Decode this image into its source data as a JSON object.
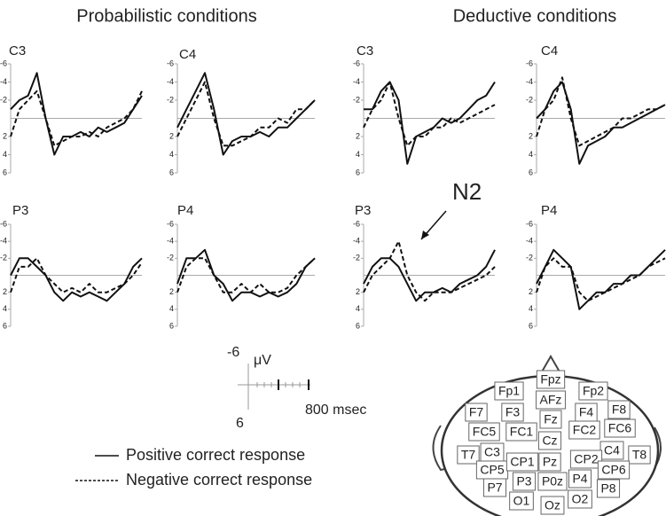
{
  "section_titles": [
    "Probabilistic conditions",
    "Deductive conditions"
  ],
  "annotation": "N2",
  "legend": [
    {
      "name": "Positive correct response",
      "line_style": "solid"
    },
    {
      "name": "Negative correct response",
      "line_style": "dashed"
    }
  ],
  "scale_bar": {
    "top_label": "-6",
    "unit": "μV",
    "bottom_label": "6",
    "time_label": "800 msec"
  },
  "electrodes": [
    "Fpz",
    "Fp1",
    "Fp2",
    "AFz",
    "F7",
    "F3",
    "Fz",
    "F4",
    "F8",
    "FC5",
    "FC1",
    "FC2",
    "FC6",
    "Cz",
    "T7",
    "C3",
    "C4",
    "T8",
    "CP5",
    "CP1",
    "Pz",
    "CP2",
    "CP6",
    "P7",
    "P3",
    "P0z",
    "P4",
    "P8",
    "O1",
    "Oz",
    "O2"
  ],
  "chart_data": [
    {
      "type": "line",
      "title": "C3",
      "x": [
        -100,
        0,
        100,
        200,
        300,
        400,
        500,
        600,
        700,
        800,
        900,
        1000,
        1100,
        1200,
        1300,
        1400
      ],
      "xlim": [
        -100,
        1400
      ],
      "ylim": [
        6,
        -6
      ],
      "yticks": [
        -6,
        -4,
        -2,
        2,
        4,
        6
      ],
      "series": [
        {
          "line_style": "solid",
          "color": "#111",
          "values": [
            -1,
            -2,
            -2.5,
            -5,
            0,
            4,
            2,
            2,
            1.5,
            2,
            1,
            1.5,
            1,
            0.5,
            -1,
            -2.5
          ]
        },
        {
          "line_style": "dashed",
          "color": "#111",
          "values": [
            2,
            -1,
            -2,
            -3,
            0,
            3,
            2.5,
            2,
            2,
            1.5,
            2,
            1,
            0.5,
            0,
            -1,
            -3
          ]
        }
      ]
    },
    {
      "type": "line",
      "title": "C4",
      "x": [
        -100,
        0,
        100,
        200,
        300,
        400,
        500,
        600,
        700,
        800,
        900,
        1000,
        1100,
        1200,
        1300,
        1400
      ],
      "xlim": [
        -100,
        1400
      ],
      "ylim": [
        6,
        -6
      ],
      "yticks": [
        -6,
        -4,
        -2,
        2,
        4,
        6
      ],
      "series": [
        {
          "line_style": "solid",
          "color": "#111",
          "values": [
            1,
            -1,
            -3,
            -5,
            -1,
            4,
            2.5,
            2,
            2,
            1.5,
            2,
            1,
            1,
            0,
            -1,
            -2
          ]
        },
        {
          "line_style": "dashed",
          "color": "#111",
          "values": [
            2,
            0,
            -2,
            -4,
            0,
            3,
            3,
            2.5,
            2,
            1,
            1,
            0,
            0.5,
            -1,
            -1,
            -2
          ]
        }
      ]
    },
    {
      "type": "line",
      "title": "C3",
      "x": [
        -100,
        0,
        100,
        200,
        300,
        400,
        500,
        600,
        700,
        800,
        900,
        1000,
        1100,
        1200,
        1300,
        1400
      ],
      "xlim": [
        -100,
        1400
      ],
      "ylim": [
        6,
        -6
      ],
      "yticks": [
        -6,
        -4,
        -2,
        2,
        4,
        6
      ],
      "series": [
        {
          "line_style": "solid",
          "color": "#111",
          "values": [
            -1,
            -1,
            -3,
            -4,
            -2,
            5,
            2,
            1.5,
            1,
            0,
            0.5,
            0,
            -1,
            -2,
            -2.5,
            -4
          ]
        },
        {
          "line_style": "dashed",
          "color": "#111",
          "values": [
            1,
            -1,
            -2,
            -4,
            0,
            3,
            2,
            2,
            1,
            1,
            0,
            0.5,
            0,
            -0.5,
            -1,
            -1.5
          ]
        }
      ]
    },
    {
      "type": "line",
      "title": "C4",
      "x": [
        -100,
        0,
        100,
        200,
        300,
        400,
        500,
        600,
        700,
        800,
        900,
        1000,
        1100,
        1200,
        1300,
        1400
      ],
      "xlim": [
        -100,
        1400
      ],
      "ylim": [
        6,
        -6
      ],
      "yticks": [
        -6,
        -4,
        -2,
        2,
        4,
        6
      ],
      "series": [
        {
          "line_style": "solid",
          "color": "#111",
          "values": [
            0,
            -1,
            -3,
            -4,
            -1,
            5,
            3,
            2.5,
            2,
            1,
            1,
            0.5,
            0,
            -0.5,
            -1,
            -1.5
          ]
        },
        {
          "line_style": "dashed",
          "color": "#111",
          "values": [
            2,
            -1,
            -2,
            -4.5,
            0,
            3,
            2.5,
            2,
            1.5,
            1,
            0,
            0,
            -0.5,
            -1,
            -1,
            -1.5
          ]
        }
      ]
    },
    {
      "type": "line",
      "title": "P3",
      "x": [
        -100,
        0,
        100,
        200,
        300,
        400,
        500,
        600,
        700,
        800,
        900,
        1000,
        1100,
        1200,
        1300,
        1400
      ],
      "xlim": [
        -100,
        1400
      ],
      "ylim": [
        6,
        -6
      ],
      "yticks": [
        -6,
        -4,
        -2,
        2,
        4,
        6
      ],
      "series": [
        {
          "line_style": "solid",
          "color": "#111",
          "values": [
            0,
            -2,
            -2,
            -1,
            0,
            2,
            3,
            2,
            2.5,
            2,
            2.5,
            3,
            2,
            1,
            -1,
            -2
          ]
        },
        {
          "line_style": "dashed",
          "color": "#111",
          "values": [
            2,
            -1,
            -1,
            -2,
            0,
            1,
            2,
            1.5,
            2,
            1,
            2,
            2,
            1.5,
            1,
            0,
            -1.5
          ]
        }
      ]
    },
    {
      "type": "line",
      "title": "P4",
      "x": [
        -100,
        0,
        100,
        200,
        300,
        400,
        500,
        600,
        700,
        800,
        900,
        1000,
        1100,
        1200,
        1300,
        1400
      ],
      "xlim": [
        -100,
        1400
      ],
      "ylim": [
        6,
        -6
      ],
      "yticks": [
        -6,
        -4,
        -2,
        2,
        4,
        6
      ],
      "series": [
        {
          "line_style": "solid",
          "color": "#111",
          "values": [
            1,
            -2,
            -2,
            -3,
            0,
            1,
            3,
            2,
            2,
            2.5,
            2,
            2.5,
            2,
            1,
            -1,
            -2
          ]
        },
        {
          "line_style": "dashed",
          "color": "#111",
          "values": [
            2,
            -1,
            -2,
            -2,
            0,
            2,
            2,
            1,
            2,
            1,
            2,
            2,
            1.5,
            0,
            -1,
            -2
          ]
        }
      ]
    },
    {
      "type": "line",
      "title": "P3",
      "x": [
        -100,
        0,
        100,
        200,
        300,
        400,
        500,
        600,
        700,
        800,
        900,
        1000,
        1100,
        1200,
        1300,
        1400
      ],
      "xlim": [
        -100,
        1400
      ],
      "ylim": [
        6,
        -6
      ],
      "yticks": [
        -6,
        -4,
        -2,
        2,
        4,
        6
      ],
      "series": [
        {
          "line_style": "solid",
          "color": "#111",
          "values": [
            1,
            -1,
            -2,
            -2,
            -1,
            1,
            3,
            2,
            2,
            1.5,
            2,
            1,
            0.5,
            0,
            -1,
            -3
          ]
        },
        {
          "line_style": "dashed",
          "color": "#111",
          "values": [
            2,
            0,
            -1,
            -2,
            -4,
            0,
            2,
            3,
            2,
            2,
            2,
            1.5,
            1,
            0.5,
            0,
            -1
          ]
        }
      ]
    },
    {
      "type": "line",
      "title": "P4",
      "x": [
        -100,
        0,
        100,
        200,
        300,
        400,
        500,
        600,
        700,
        800,
        900,
        1000,
        1100,
        1200,
        1300,
        1400
      ],
      "xlim": [
        -100,
        1400
      ],
      "ylim": [
        6,
        -6
      ],
      "yticks": [
        -6,
        -4,
        -2,
        2,
        4,
        6
      ],
      "series": [
        {
          "line_style": "solid",
          "color": "#111",
          "values": [
            1,
            -1,
            -3,
            -2,
            -1,
            4,
            3,
            2,
            2,
            1,
            1,
            0,
            0,
            -1,
            -2,
            -3
          ]
        },
        {
          "line_style": "dashed",
          "color": "#111",
          "values": [
            2,
            -1,
            -2,
            -1,
            -1,
            2,
            3,
            2.5,
            2,
            1.5,
            1,
            0.5,
            0,
            -1,
            -1.5,
            -2
          ]
        }
      ]
    }
  ]
}
